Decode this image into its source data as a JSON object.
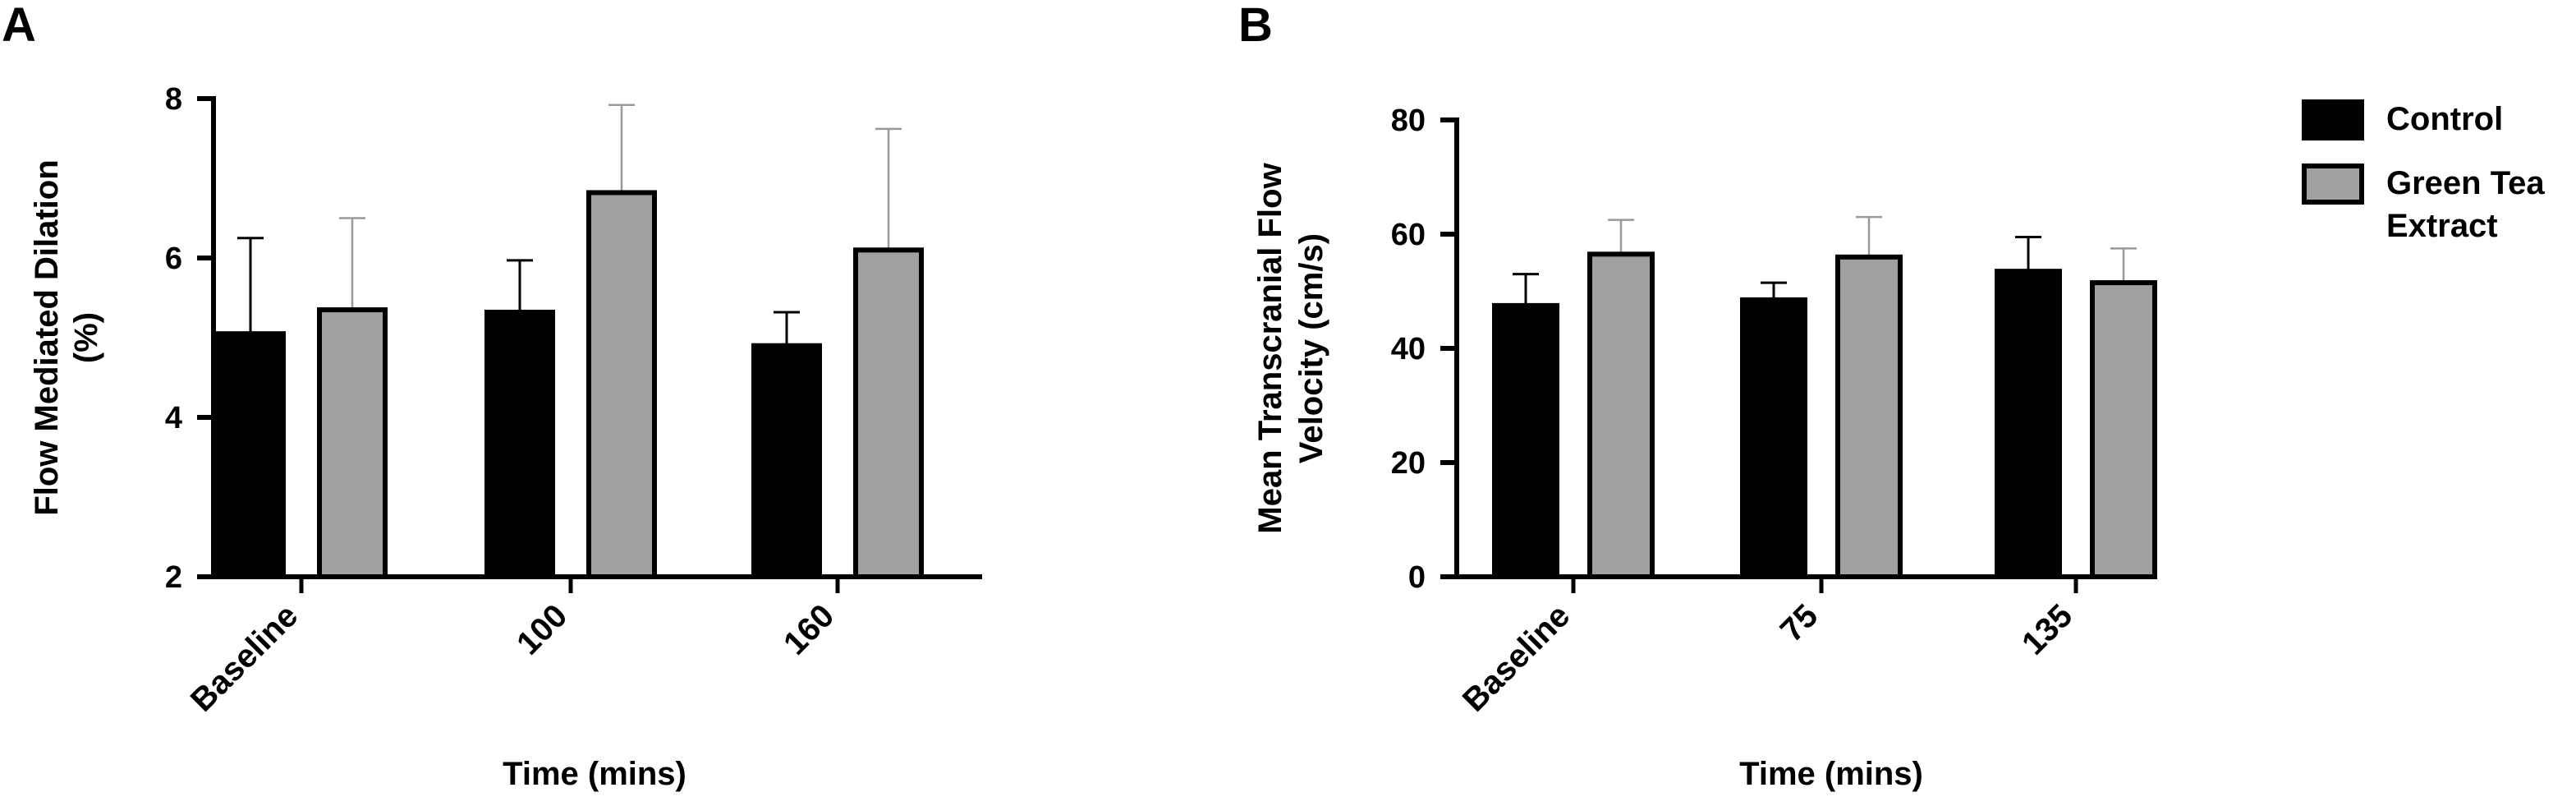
{
  "chart_data": [
    {
      "type": "bar",
      "panel": "A",
      "categories": [
        "Baseline",
        "100",
        "160"
      ],
      "series": [
        {
          "name": "Control",
          "color": "#000000",
          "values": [
            5.05,
            5.32,
            4.9
          ],
          "errors": [
            1.2,
            0.65,
            0.42
          ]
        },
        {
          "name": "Green Tea Extract",
          "color": "#a0a0a0",
          "values": [
            5.35,
            6.82,
            6.1
          ],
          "errors": [
            1.15,
            1.1,
            1.52
          ]
        }
      ],
      "ylabel_lines": [
        "Flow Mediated Dilation",
        "(%)"
      ],
      "xlabel": "Time (mins)",
      "ylim": [
        2,
        8
      ],
      "yticks": [
        2,
        4,
        6,
        8
      ]
    },
    {
      "type": "bar",
      "panel": "B",
      "categories": [
        "Baseline",
        "75",
        "135"
      ],
      "series": [
        {
          "name": "Control",
          "color": "#000000",
          "values": [
            47.5,
            48.5,
            53.5
          ],
          "errors": [
            5.5,
            3.0,
            6.0
          ]
        },
        {
          "name": "Green Tea Extract",
          "color": "#a0a0a0",
          "values": [
            56.5,
            56.0,
            51.5
          ],
          "errors": [
            6.0,
            7.0,
            6.0
          ]
        }
      ],
      "ylabel_lines": [
        "Mean Transcranial Flow",
        "Velocity (cm/s)"
      ],
      "xlabel": "Time (mins)",
      "ylim": [
        0,
        80
      ],
      "yticks": [
        0,
        20,
        40,
        60,
        80
      ]
    }
  ],
  "legend": {
    "items": [
      {
        "label_lines": [
          "Control"
        ],
        "color": "#000000"
      },
      {
        "label_lines": [
          "Green Tea",
          "Extract"
        ],
        "color": "#a0a0a0"
      }
    ]
  }
}
